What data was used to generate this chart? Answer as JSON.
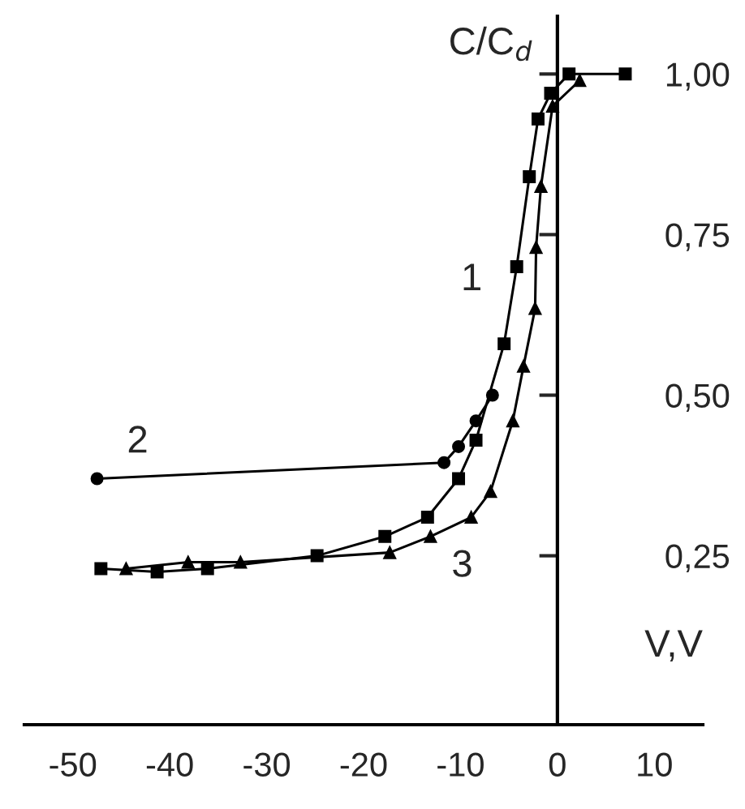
{
  "chart_data": {
    "type": "line",
    "xlabel": "V,V",
    "ylabel": "C/C$_{d}$",
    "xlim": [
      -55,
      15
    ],
    "ylim": [
      -0.013,
      1.09
    ],
    "xticks": [
      {
        "value": -50,
        "label": "-50"
      },
      {
        "value": -40,
        "label": "-40"
      },
      {
        "value": -30,
        "label": "-30"
      },
      {
        "value": -20,
        "label": "-20"
      },
      {
        "value": -10,
        "label": "-10"
      },
      0,
      10
    ],
    "yticks": [
      {
        "value": 0.25,
        "label": "0,25"
      },
      {
        "value": 0.5,
        "label": "0,50"
      },
      {
        "value": 0.75,
        "label": "0,75"
      },
      {
        "value": 1.0,
        "label": "1,00"
      }
    ],
    "legend": false,
    "tick_labels": "xy",
    "series": [
      {
        "name": "1",
        "color": "#000000",
        "marker": "square",
        "x": [
          -47.1,
          -41.3,
          -36.1,
          -24.8,
          -17.8,
          -13.4,
          -10.2,
          -8.4,
          -5.5,
          -4.2,
          -2.9,
          -2.0,
          -0.7,
          1.2,
          7.0
        ],
        "values": [
          0.23,
          0.225,
          0.23,
          0.25,
          0.28,
          0.31,
          0.37,
          0.43,
          0.58,
          0.7,
          0.84,
          0.93,
          0.97,
          1.0,
          1.0
        ]
      },
      {
        "name": "2",
        "color": "#000000",
        "marker": "circle",
        "x": [
          -47.5,
          -11.7,
          -10.2,
          -8.4,
          -6.7
        ],
        "values": [
          0.37,
          0.395,
          0.42,
          0.46,
          0.5
        ]
      },
      {
        "name": "3",
        "color": "#000000",
        "marker": "triangle",
        "x": [
          -44.5,
          -38.1,
          -32.7,
          -17.3,
          -13.1,
          -8.9,
          -6.9,
          -4.6,
          -3.5,
          -2.3,
          -2.2,
          -1.7,
          -0.5,
          2.3
        ],
        "values": [
          0.23,
          0.24,
          0.24,
          0.255,
          0.28,
          0.31,
          0.35,
          0.46,
          0.545,
          0.635,
          0.73,
          0.825,
          0.95,
          0.99
        ]
      }
    ]
  }
}
